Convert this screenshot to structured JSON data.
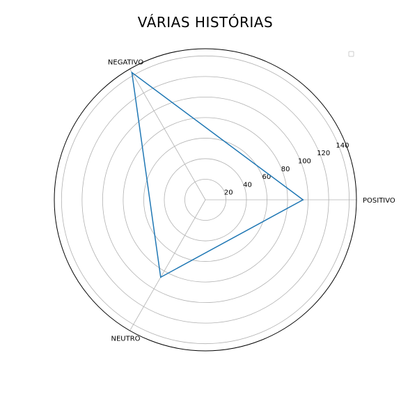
{
  "chart_data": {
    "type": "radar",
    "title": "VÁRIAS HISTÓRIAS",
    "categories": [
      "POSITIVO",
      "NEGATIVO",
      "NEUTRO"
    ],
    "series": [
      {
        "values": [
          95,
          143,
          87
        ],
        "color": "#1f77b4"
      }
    ],
    "rlim": [
      0,
      147
    ],
    "rticks": [
      20,
      40,
      60,
      80,
      100,
      120,
      140
    ],
    "grid": true,
    "legend": "top-right"
  }
}
